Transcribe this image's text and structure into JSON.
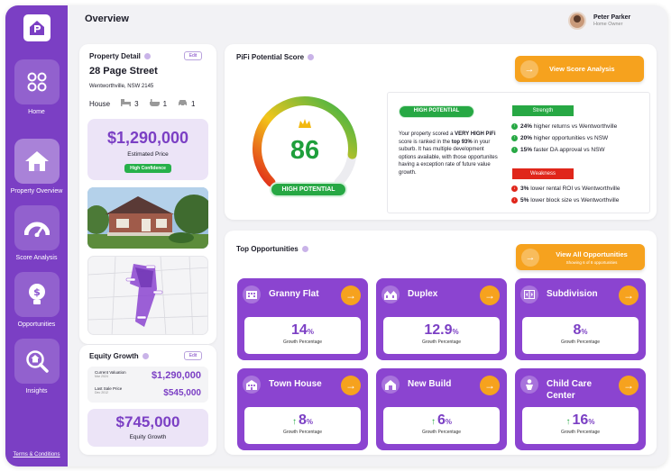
{
  "header": {
    "title": "Overview"
  },
  "user": {
    "name": "Peter Parker",
    "role": "Home Owner"
  },
  "sidebar": {
    "items": [
      {
        "label": "Home"
      },
      {
        "label": "Property Overview"
      },
      {
        "label": "Score Analysis"
      },
      {
        "label": "Opportunities"
      },
      {
        "label": "Insights"
      }
    ],
    "terms": "Terms & Conditions"
  },
  "property": {
    "title": "Property Detail",
    "edit": "Edit",
    "street": "28 Page Street",
    "suburb": "Wentworthville, NSW 2145",
    "type": "House",
    "beds": "3",
    "baths": "1",
    "cars": "1",
    "price": "$1,290,000",
    "price_label": "Estimated Price",
    "confidence": "High Confidence"
  },
  "equity": {
    "title": "Equity Growth",
    "edit": "Edit",
    "current_label": "Current Valuation",
    "current_date": "Mar 2024",
    "current_value": "$1,290,000",
    "last_label": "Last Sale Price",
    "last_date": "Dec 2012",
    "last_value": "$545,000",
    "growth": "$745,000",
    "growth_label": "Equity Growth"
  },
  "score": {
    "title": "PiFi Potential Score",
    "value": "86",
    "gauge_fraction": 0.86,
    "badge": "HIGH POTENTIAL",
    "view_btn": "View Score Analysis",
    "description_parts": [
      "Your property scored a ",
      "VERY HIGH PiFi",
      " score is ranked in the ",
      "top 93%",
      " in your suburb. It has multiple development options available, with those opportunites having a exception rate of future value growth."
    ],
    "strength_title": "Strength",
    "strengths": [
      {
        "pct": "24%",
        "text": " higher returns vs Wentworthville"
      },
      {
        "pct": "20%",
        "text": " higher opportunities vs NSW"
      },
      {
        "pct": "15%",
        "text": " faster DA approval vs NSW"
      }
    ],
    "weakness_title": "Weakness",
    "weaknesses": [
      {
        "pct": "3%",
        "text": " lower rental ROI vs Wentworthville"
      },
      {
        "pct": "5%",
        "text": " lower block size vs Wentworthville"
      }
    ]
  },
  "opps": {
    "title": "Top Opportunities",
    "view_btn": "View All Opportunities",
    "showing": "Showing 6 of 8 opportunities",
    "items": [
      {
        "name": "Granny Flat",
        "value": "14",
        "unit": "%",
        "label": "Growth Percentage",
        "arrow": false
      },
      {
        "name": "Duplex",
        "value": "12.9",
        "unit": "%",
        "label": "Growth Percentage",
        "arrow": false
      },
      {
        "name": "Subdivision",
        "value": "8",
        "unit": "%",
        "label": "Growth Percentage",
        "arrow": false
      },
      {
        "name": "Town House",
        "value": "8",
        "unit": "%",
        "label": "Growth Percentage",
        "arrow": true
      },
      {
        "name": "New Build",
        "value": "6",
        "unit": "%",
        "label": "Growth Percentage",
        "arrow": true
      },
      {
        "name": "Child Care Center",
        "value": "16",
        "unit": "%",
        "label": "Growth Percentage",
        "arrow": true
      }
    ]
  },
  "colors": {
    "purple": "#7b3fc4",
    "orange": "#f6a21e",
    "green": "#27a844",
    "red": "#e0261b"
  }
}
